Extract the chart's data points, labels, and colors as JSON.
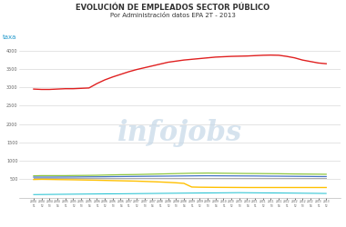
{
  "title1": "EVOLUCIÓN DE EMPLEADOS SECTOR PÚBLICO",
  "title2": "Por Administración datos EPA 2T - 2013",
  "ylabel": "taxa",
  "background_color": "#ffffff",
  "plot_bg_color": "#ffffff",
  "red_line": [
    2950,
    2940,
    2940,
    2950,
    2960,
    2960,
    2970,
    2980,
    3100,
    3200,
    3280,
    3350,
    3420,
    3480,
    3530,
    3580,
    3630,
    3680,
    3710,
    3740,
    3760,
    3780,
    3800,
    3820,
    3830,
    3840,
    3845,
    3850,
    3860,
    3870,
    3875,
    3870,
    3840,
    3800,
    3740,
    3700,
    3660,
    3640
  ],
  "green_line": [
    590,
    595,
    595,
    595,
    595,
    598,
    600,
    602,
    605,
    610,
    615,
    620,
    622,
    625,
    630,
    635,
    640,
    645,
    650,
    655,
    660,
    662,
    665,
    663,
    660,
    658,
    655,
    653,
    652,
    650,
    648,
    646,
    643,
    640,
    638,
    636,
    634,
    632
  ],
  "blue_line": [
    555,
    555,
    555,
    556,
    557,
    558,
    560,
    562,
    563,
    565,
    568,
    570,
    572,
    574,
    576,
    578,
    580,
    582,
    584,
    586,
    588,
    590,
    591,
    590,
    589,
    588,
    587,
    586,
    585,
    583,
    581,
    580,
    578,
    576,
    574,
    572,
    570,
    569
  ],
  "orange_line": [
    540,
    540,
    540,
    540,
    540,
    540,
    540,
    540,
    540,
    540,
    540,
    540,
    540,
    540,
    540,
    540,
    540,
    540,
    540,
    540,
    540,
    540,
    540,
    540,
    540,
    540,
    540,
    540,
    540,
    540,
    540,
    540,
    540,
    540,
    540,
    540,
    540,
    540
  ],
  "yellow_line": [
    490,
    495,
    492,
    488,
    485,
    482,
    478,
    474,
    470,
    465,
    460,
    455,
    450,
    445,
    438,
    430,
    422,
    412,
    400,
    385,
    285,
    280,
    278,
    276,
    275,
    274,
    273,
    272,
    272,
    272,
    272,
    272,
    272,
    272,
    272,
    272,
    272,
    272
  ],
  "cyan_line": [
    80,
    82,
    84,
    86,
    88,
    90,
    92,
    94,
    96,
    98,
    100,
    102,
    104,
    106,
    108,
    110,
    112,
    114,
    116,
    118,
    120,
    122,
    124,
    126,
    128,
    130,
    132,
    130,
    128,
    126,
    124,
    122,
    120,
    118,
    116,
    114,
    112,
    110
  ],
  "ylim": [
    0,
    4200
  ],
  "ytick_positions": [
    500,
    1000,
    1500,
    2000,
    2500,
    3000,
    3500,
    4000
  ],
  "grid_color": "#d0d0d0",
  "red_color": "#e02020",
  "green_color": "#8dc63f",
  "blue_color": "#4472c4",
  "orange_color": "#aaaaaa",
  "yellow_color": "#ffc000",
  "cyan_color": "#17becf",
  "watermark_color": "#c5d8e8",
  "ylabel_color": "#2299cc",
  "title_fontsize": 6.0,
  "subtitle_fontsize": 5.0
}
